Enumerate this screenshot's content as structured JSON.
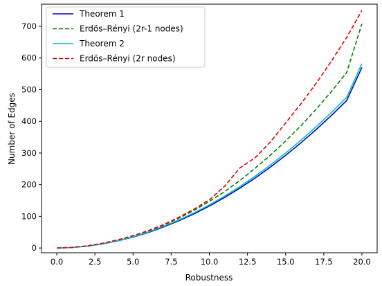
{
  "chart_data": {
    "type": "line",
    "title": "",
    "xlabel": "Robustness",
    "ylabel": "Number of Edges",
    "xlim": [
      -1,
      21
    ],
    "ylim": [
      -15,
      770
    ],
    "grid": false,
    "legend_position": "top-left",
    "x_ticks": [
      0,
      2.5,
      5,
      7.5,
      10,
      12.5,
      15,
      17.5,
      20
    ],
    "x_tick_labels": [
      "0.0",
      "2.5",
      "5.0",
      "7.5",
      "10.0",
      "12.5",
      "15.0",
      "17.5",
      "20.0"
    ],
    "y_ticks": [
      0,
      100,
      200,
      300,
      400,
      500,
      600,
      700
    ],
    "y_tick_labels": [
      "0",
      "100",
      "200",
      "300",
      "400",
      "500",
      "600",
      "700"
    ],
    "series": [
      {
        "name": "Theorem 1",
        "color": "#0000cc",
        "dash": "solid",
        "x": [
          0,
          1,
          2,
          3,
          4,
          5,
          6,
          7,
          8,
          9,
          10,
          11,
          12,
          13,
          14,
          15,
          16,
          17,
          18,
          19,
          20
        ],
        "y": [
          0,
          1.5,
          6,
          13,
          22.5,
          34.5,
          49,
          66.5,
          86,
          108,
          132.5,
          159.5,
          189,
          221,
          255.5,
          292.5,
          332,
          374,
          418.5,
          465.5,
          570
        ]
      },
      {
        "name": "Erdös–Rényi (2r-1 nodes)",
        "color": "#008000",
        "dash": "dashed",
        "x": [
          0,
          1,
          2,
          3,
          4,
          5,
          6,
          7,
          8,
          9,
          10,
          11,
          12,
          13,
          14,
          15,
          16,
          17,
          18,
          19,
          20
        ],
        "y": [
          0,
          1.5,
          6,
          14,
          24,
          37,
          53,
          72,
          94,
          119,
          147,
          178,
          213,
          252,
          293,
          338,
          386,
          438,
          494,
          554,
          708
        ]
      },
      {
        "name": "Theorem 2",
        "color": "#00bfbf",
        "dash": "solid",
        "x": [
          0,
          1,
          2,
          3,
          4,
          5,
          6,
          7,
          8,
          9,
          10,
          11,
          12,
          13,
          14,
          15,
          16,
          17,
          18,
          19,
          20
        ],
        "y": [
          0,
          1.5,
          6,
          13.5,
          23,
          35.5,
          50.5,
          68.5,
          88.5,
          111,
          136,
          164,
          194,
          227,
          262,
          300,
          340,
          383,
          428,
          476,
          582
        ]
      },
      {
        "name": "Erdös–Rényi (2r nodes)",
        "color": "#dd0000",
        "dash": "dashed",
        "x": [
          0,
          1,
          2,
          3,
          4,
          5,
          6,
          7,
          8,
          9,
          10,
          11,
          12,
          13,
          14,
          15,
          16,
          17,
          18,
          19,
          20
        ],
        "y": [
          0,
          2,
          7,
          15,
          26,
          39,
          55,
          74,
          97,
          123,
          152,
          195,
          253,
          285,
          335,
          395,
          455,
          520,
          590,
          665,
          750
        ]
      }
    ]
  }
}
